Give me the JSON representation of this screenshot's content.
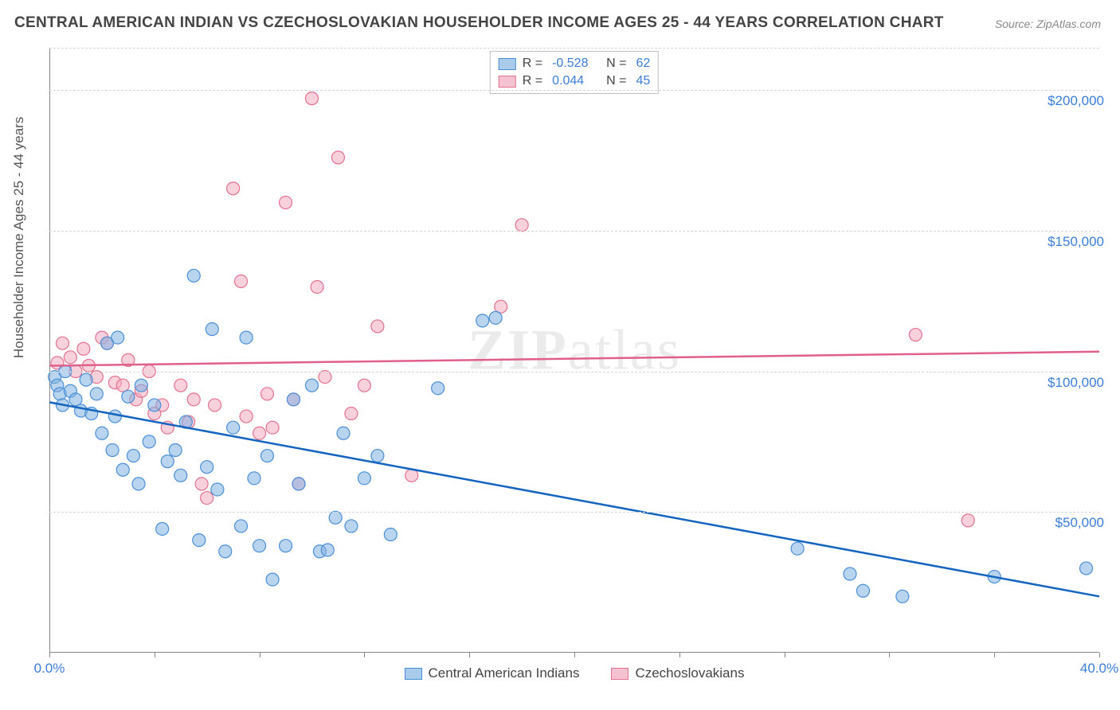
{
  "title": "CENTRAL AMERICAN INDIAN VS CZECHOSLOVAKIAN HOUSEHOLDER INCOME AGES 25 - 44 YEARS CORRELATION CHART",
  "source_label": "Source: ZipAtlas.com",
  "y_axis_label": "Householder Income Ages 25 - 44 years",
  "watermark_text_1": "ZIP",
  "watermark_text_2": "atlas",
  "chart": {
    "type": "scatter",
    "xlim": [
      0,
      40
    ],
    "ylim": [
      0,
      215000
    ],
    "x_ticks": [
      0,
      4,
      8,
      12,
      16,
      20,
      24,
      28,
      32,
      36,
      40
    ],
    "x_tick_labels_shown": {
      "0": "0.0%",
      "40": "40.0%"
    },
    "y_gridlines": [
      50000,
      100000,
      150000,
      200000
    ],
    "y_tick_labels": {
      "50000": "$50,000",
      "100000": "$100,000",
      "150000": "$150,000",
      "200000": "$200,000"
    },
    "background_color": "#ffffff",
    "grid_color": "#d5d5d5",
    "axis_color": "#888888",
    "tick_label_color": "#3b7dd8",
    "title_color": "#444444",
    "marker_radius": 8,
    "series": {
      "blue": {
        "label": "Central American Indians",
        "fill_color": "rgba(128,176,226,0.55)",
        "stroke_color": "#4a8fd6",
        "swatch_fill": "#a9cced",
        "swatch_border": "#4a8fd6",
        "R": "-0.528",
        "N": "62",
        "trend": {
          "x1": 0,
          "y1": 89000,
          "x2": 40,
          "y2": 20000,
          "color": "#1565c0"
        },
        "points": [
          [
            0.2,
            98000
          ],
          [
            0.3,
            95000
          ],
          [
            0.4,
            92000
          ],
          [
            0.5,
            88000
          ],
          [
            0.6,
            100000
          ],
          [
            0.8,
            93000
          ],
          [
            1.0,
            90000
          ],
          [
            1.2,
            86000
          ],
          [
            1.4,
            97000
          ],
          [
            1.6,
            85000
          ],
          [
            1.8,
            92000
          ],
          [
            2.0,
            78000
          ],
          [
            2.2,
            110000
          ],
          [
            2.4,
            72000
          ],
          [
            2.5,
            84000
          ],
          [
            2.6,
            112000
          ],
          [
            2.8,
            65000
          ],
          [
            3.0,
            91000
          ],
          [
            3.2,
            70000
          ],
          [
            3.4,
            60000
          ],
          [
            3.5,
            95000
          ],
          [
            3.8,
            75000
          ],
          [
            4.0,
            88000
          ],
          [
            4.3,
            44000
          ],
          [
            4.5,
            68000
          ],
          [
            4.8,
            72000
          ],
          [
            5.0,
            63000
          ],
          [
            5.2,
            82000
          ],
          [
            5.5,
            134000
          ],
          [
            5.7,
            40000
          ],
          [
            6.0,
            66000
          ],
          [
            6.2,
            115000
          ],
          [
            6.4,
            58000
          ],
          [
            6.7,
            36000
          ],
          [
            7.0,
            80000
          ],
          [
            7.3,
            45000
          ],
          [
            7.5,
            112000
          ],
          [
            7.8,
            62000
          ],
          [
            8.0,
            38000
          ],
          [
            8.3,
            70000
          ],
          [
            8.5,
            26000
          ],
          [
            9.0,
            38000
          ],
          [
            9.3,
            90000
          ],
          [
            9.5,
            60000
          ],
          [
            10.0,
            95000
          ],
          [
            10.3,
            36000
          ],
          [
            10.6,
            36500
          ],
          [
            10.9,
            48000
          ],
          [
            11.2,
            78000
          ],
          [
            11.5,
            45000
          ],
          [
            12.0,
            62000
          ],
          [
            12.5,
            70000
          ],
          [
            13.0,
            42000
          ],
          [
            14.8,
            94000
          ],
          [
            16.5,
            118000
          ],
          [
            17.0,
            119000
          ],
          [
            28.5,
            37000
          ],
          [
            30.5,
            28000
          ],
          [
            31.0,
            22000
          ],
          [
            32.5,
            20000
          ],
          [
            36.0,
            27000
          ],
          [
            39.5,
            30000
          ]
        ]
      },
      "pink": {
        "label": "Czechoslovakians",
        "fill_color": "rgba(242,172,193,0.55)",
        "stroke_color": "#e3718f",
        "swatch_fill": "#f4c2d0",
        "swatch_border": "#e3718f",
        "R": "0.044",
        "N": "45",
        "trend": {
          "x1": 0,
          "y1": 102000,
          "x2": 40,
          "y2": 107000,
          "color": "#e15f8b"
        },
        "points": [
          [
            0.3,
            103000
          ],
          [
            0.5,
            110000
          ],
          [
            0.8,
            105000
          ],
          [
            1.0,
            100000
          ],
          [
            1.3,
            108000
          ],
          [
            1.5,
            102000
          ],
          [
            1.8,
            98000
          ],
          [
            2.0,
            112000
          ],
          [
            2.2,
            110000
          ],
          [
            2.5,
            96000
          ],
          [
            2.8,
            95000
          ],
          [
            3.0,
            104000
          ],
          [
            3.3,
            90000
          ],
          [
            3.5,
            93000
          ],
          [
            3.8,
            100000
          ],
          [
            4.0,
            85000
          ],
          [
            4.3,
            88000
          ],
          [
            4.5,
            80000
          ],
          [
            5.0,
            95000
          ],
          [
            5.3,
            82000
          ],
          [
            5.5,
            90000
          ],
          [
            5.8,
            60000
          ],
          [
            6.0,
            55000
          ],
          [
            6.3,
            88000
          ],
          [
            7.0,
            165000
          ],
          [
            7.3,
            132000
          ],
          [
            7.5,
            84000
          ],
          [
            8.0,
            78000
          ],
          [
            8.3,
            92000
          ],
          [
            8.5,
            80000
          ],
          [
            9.0,
            160000
          ],
          [
            9.3,
            90000
          ],
          [
            9.5,
            60000
          ],
          [
            10.0,
            197000
          ],
          [
            10.2,
            130000
          ],
          [
            10.5,
            98000
          ],
          [
            11.0,
            176000
          ],
          [
            11.5,
            85000
          ],
          [
            12.0,
            95000
          ],
          [
            12.5,
            116000
          ],
          [
            13.8,
            63000
          ],
          [
            17.2,
            123000
          ],
          [
            18.0,
            152000
          ],
          [
            33.0,
            113000
          ],
          [
            35.0,
            47000
          ]
        ]
      }
    }
  },
  "legend_top": {
    "rows": [
      {
        "swatch": "blue",
        "R_label": "R =",
        "R_val": "-0.528",
        "N_label": "N =",
        "N_val": "62"
      },
      {
        "swatch": "pink",
        "R_label": "R =",
        "R_val": "0.044",
        "N_label": "N =",
        "N_val": "45"
      }
    ]
  },
  "legend_bottom": {
    "items": [
      {
        "swatch": "blue",
        "label": "Central American Indians"
      },
      {
        "swatch": "pink",
        "label": "Czechoslovakians"
      }
    ]
  }
}
